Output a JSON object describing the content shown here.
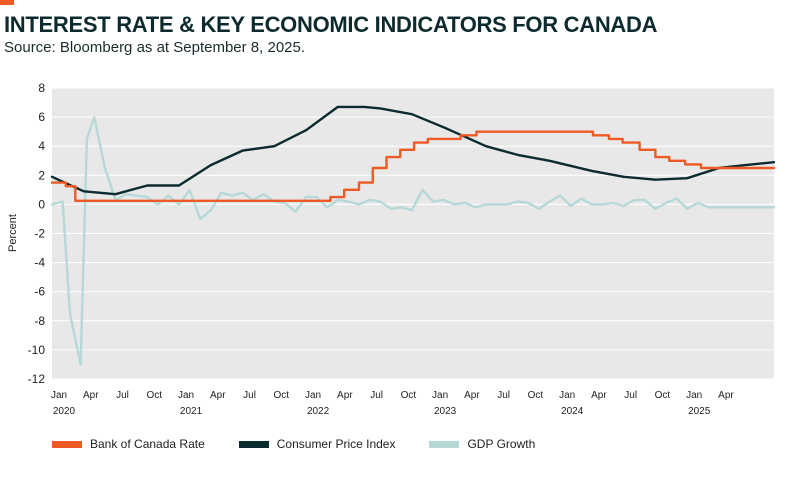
{
  "header": {
    "title": "INTEREST RATE & KEY ECONOMIC INDICATORS FOR CANADA",
    "subtitle": "Source: Bloomberg as at September 8, 2025.",
    "accent_color": "#ee5a24"
  },
  "chart_data": {
    "type": "line",
    "title": "INTEREST RATE & KEY ECONOMIC INDICATORS FOR CANADA",
    "ylabel": "Percent",
    "xlabel": "",
    "ylim": [
      -12,
      8
    ],
    "yticks": [
      8,
      6,
      4,
      2,
      0,
      -2,
      -4,
      -6,
      -8,
      -10,
      -12
    ],
    "xlim": [
      0,
      68.2
    ],
    "x_unit": "months since Jan 2020",
    "xticks": [
      {
        "x": 0,
        "label": "Jan"
      },
      {
        "x": 3,
        "label": "Apr"
      },
      {
        "x": 6,
        "label": "Jul"
      },
      {
        "x": 9,
        "label": "Oct"
      },
      {
        "x": 12,
        "label": "Jan"
      },
      {
        "x": 15,
        "label": "Apr"
      },
      {
        "x": 18,
        "label": "Jul"
      },
      {
        "x": 21,
        "label": "Oct"
      },
      {
        "x": 24,
        "label": "Jan"
      },
      {
        "x": 27,
        "label": "Apr"
      },
      {
        "x": 30,
        "label": "Jul"
      },
      {
        "x": 33,
        "label": "Oct"
      },
      {
        "x": 36,
        "label": "Jan"
      },
      {
        "x": 39,
        "label": "Apr"
      },
      {
        "x": 42,
        "label": "Jul"
      },
      {
        "x": 45,
        "label": "Oct"
      },
      {
        "x": 48,
        "label": "Jan"
      },
      {
        "x": 51,
        "label": "Apr"
      },
      {
        "x": 54,
        "label": "Jul"
      },
      {
        "x": 57,
        "label": "Oct"
      },
      {
        "x": 60,
        "label": "Jan"
      },
      {
        "x": 63,
        "label": "Apr"
      }
    ],
    "year_ticks": [
      {
        "x": 0,
        "label": "2020"
      },
      {
        "x": 12,
        "label": "2021"
      },
      {
        "x": 24,
        "label": "2022"
      },
      {
        "x": 36,
        "label": "2023"
      },
      {
        "x": 48,
        "label": "2024"
      },
      {
        "x": 60,
        "label": "2025"
      }
    ],
    "grid": true,
    "legend_position": "bottom",
    "series": [
      {
        "name": "Bank of Canada Rate",
        "color": "#ee5a24",
        "step": true,
        "x": [
          0,
          1.3,
          2.2,
          26.3,
          27.6,
          29.0,
          30.3,
          31.6,
          32.9,
          34.2,
          35.5,
          36.8,
          38.6,
          40.1,
          41.1,
          51.1,
          52.6,
          53.9,
          55.5,
          57.0,
          58.3,
          59.8,
          61.3,
          68.2
        ],
        "values": [
          1.5,
          1.25,
          0.25,
          0.5,
          1.0,
          1.5,
          2.5,
          3.25,
          3.75,
          4.25,
          4.5,
          4.5,
          4.75,
          5.0,
          5.0,
          4.75,
          4.5,
          4.25,
          3.75,
          3.25,
          3.0,
          2.75,
          2.5,
          2.5
        ]
      },
      {
        "name": "Consumer Price Index",
        "color": "#0c2b30",
        "step": false,
        "x": [
          0,
          3,
          6,
          9,
          12,
          15,
          18,
          21,
          24,
          27,
          29.5,
          31,
          34,
          37,
          41,
          44,
          47,
          51,
          54,
          57,
          60,
          63,
          65.5,
          68.2
        ],
        "values": [
          1.9,
          0.9,
          0.7,
          1.3,
          1.3,
          2.7,
          3.7,
          4.0,
          5.1,
          6.7,
          6.7,
          6.6,
          6.2,
          5.3,
          4.0,
          3.4,
          3.0,
          2.3,
          1.9,
          1.7,
          1.8,
          2.5,
          2.7,
          2.9
        ]
      },
      {
        "name": "GDP Growth",
        "color": "#b7d8d8",
        "step": false,
        "x": [
          0,
          1,
          1.7,
          2.7,
          3.3,
          4,
          5,
          6,
          7,
          8,
          9,
          10,
          11,
          12,
          13,
          14,
          15,
          16,
          17,
          18,
          19,
          20,
          21,
          22,
          23,
          24,
          25,
          26,
          27,
          28,
          29,
          30,
          31,
          32,
          33,
          34,
          35,
          36,
          37,
          38,
          39,
          40,
          41,
          42,
          43,
          44,
          45,
          46,
          47,
          48,
          49,
          50,
          51,
          52,
          53,
          54,
          55,
          56,
          57,
          58,
          59,
          60,
          61,
          62,
          63,
          64,
          65,
          66,
          67,
          68.2
        ],
        "values": [
          0.0,
          0.2,
          -7.5,
          -11.0,
          4.5,
          6.0,
          2.5,
          0.3,
          0.7,
          0.6,
          0.5,
          0.0,
          0.6,
          0.0,
          1.0,
          -1.0,
          -0.4,
          0.8,
          0.6,
          0.8,
          0.3,
          0.7,
          0.2,
          0.1,
          -0.5,
          0.5,
          0.5,
          -0.2,
          0.3,
          0.2,
          0.0,
          0.3,
          0.2,
          -0.3,
          -0.2,
          -0.4,
          1.0,
          0.2,
          0.3,
          0.0,
          0.1,
          -0.2,
          0.0,
          0.0,
          0.0,
          0.2,
          0.1,
          -0.3,
          0.2,
          0.6,
          -0.1,
          0.4,
          0.0,
          0.0,
          0.1,
          -0.1,
          0.3,
          0.3,
          -0.3,
          0.1,
          0.4,
          -0.3,
          0.1,
          -0.2,
          -0.2,
          -0.2,
          -0.2,
          -0.2,
          -0.2,
          -0.2
        ]
      }
    ]
  }
}
